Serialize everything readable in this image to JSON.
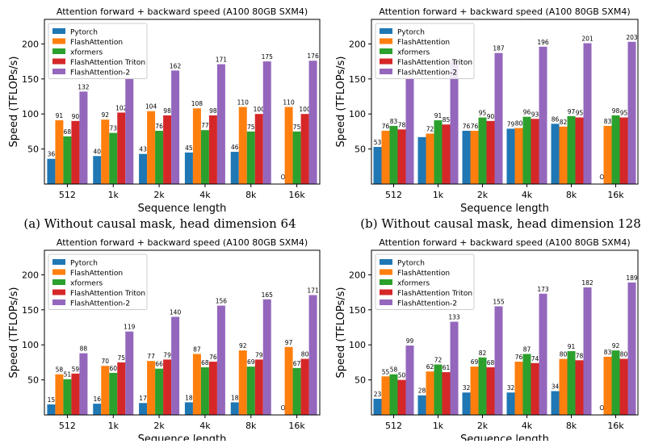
{
  "captions": [
    "(a) Without causal mask, head dimension 64",
    "(b) Without causal mask, head dimension 128"
  ],
  "colors": {
    "Pytorch": "#1f77b4",
    "FlashAttention": "#ff7f0e",
    "xformers": "#2ca02c",
    "FlashAttention Triton": "#d62728",
    "FlashAttention-2": "#9467bd"
  },
  "chart_data": [
    {
      "type": "bar",
      "title": "Attention forward + backward speed (A100 80GB SXM4)",
      "xlabel": "Sequence length",
      "ylabel": "Speed (TFLOPs/s)",
      "ylim": [
        0,
        235
      ],
      "yticks": [
        50,
        100,
        150,
        200
      ],
      "legend": "top-left",
      "oom_label": "OOM",
      "categories": [
        "512",
        "1k",
        "2k",
        "4k",
        "8k",
        "16k"
      ],
      "series": [
        {
          "name": "Pytorch",
          "values": [
            36,
            40,
            43,
            45,
            46,
            null
          ]
        },
        {
          "name": "FlashAttention",
          "values": [
            91,
            92,
            104,
            108,
            110,
            110
          ]
        },
        {
          "name": "xformers",
          "values": [
            68,
            73,
            76,
            77,
            75,
            75
          ]
        },
        {
          "name": "FlashAttention Triton",
          "values": [
            90,
            102,
            98,
            98,
            100,
            100
          ]
        },
        {
          "name": "FlashAttention-2",
          "values": [
            132,
            151,
            162,
            171,
            175,
            176
          ]
        }
      ],
      "labels": [
        [
          "36",
          "40",
          "43",
          "45",
          "46",
          "OOM"
        ],
        [
          "91",
          "92",
          "104",
          "108",
          "110",
          "110"
        ],
        [
          "68",
          "73",
          "76",
          "77",
          "75",
          "75"
        ],
        [
          "90",
          "102",
          "98",
          "98",
          "100",
          "100"
        ],
        [
          "132",
          "",
          "162",
          "171",
          "175",
          "176"
        ]
      ]
    },
    {
      "type": "bar",
      "title": "Attention forward + backward speed (A100 80GB SXM4)",
      "xlabel": "Sequence length",
      "ylabel": "Speed (TFLOPs/s)",
      "ylim": [
        0,
        235
      ],
      "yticks": [
        50,
        100,
        150,
        200
      ],
      "legend": "top-left",
      "oom_label": "OOM",
      "categories": [
        "512",
        "1k",
        "2k",
        "4k",
        "8k",
        "16k"
      ],
      "series": [
        {
          "name": "Pytorch",
          "values": [
            53,
            67,
            76,
            79,
            86,
            null
          ]
        },
        {
          "name": "FlashAttention",
          "values": [
            76,
            72,
            76,
            80,
            82,
            83
          ]
        },
        {
          "name": "xformers",
          "values": [
            83,
            91,
            95,
            96,
            97,
            98
          ]
        },
        {
          "name": "FlashAttention Triton",
          "values": [
            78,
            85,
            90,
            93,
            95,
            95
          ]
        },
        {
          "name": "FlashAttention-2",
          "values": [
            151,
            176,
            187,
            196,
            201,
            203
          ]
        }
      ],
      "labels": [
        [
          "53",
          "",
          "76",
          "79",
          "86",
          "OOM"
        ],
        [
          "76",
          "72",
          "76",
          "80",
          "82",
          "83"
        ],
        [
          "83",
          "91",
          "95",
          "96",
          "97",
          "98"
        ],
        [
          "78",
          "85",
          "90",
          "93",
          "95",
          "95"
        ],
        [
          "",
          "",
          "187",
          "196",
          "201",
          "203"
        ]
      ]
    },
    {
      "type": "bar",
      "title": "Attention forward + backward speed (A100 80GB SXM4)",
      "xlabel": "Sequence length",
      "ylabel": "Speed (TFLOPs/s)",
      "ylim": [
        0,
        235
      ],
      "yticks": [
        50,
        100,
        150,
        200
      ],
      "legend": "top-left",
      "oom_label": "OOM",
      "categories": [
        "512",
        "1k",
        "2k",
        "4k",
        "8k",
        "16k"
      ],
      "series": [
        {
          "name": "Pytorch",
          "values": [
            15,
            16,
            17,
            18,
            18,
            null
          ]
        },
        {
          "name": "FlashAttention",
          "values": [
            58,
            70,
            77,
            87,
            92,
            97
          ]
        },
        {
          "name": "xformers",
          "values": [
            51,
            60,
            66,
            68,
            69,
            67
          ]
        },
        {
          "name": "FlashAttention Triton",
          "values": [
            59,
            75,
            79,
            76,
            79,
            80
          ]
        },
        {
          "name": "FlashAttention-2",
          "values": [
            88,
            119,
            140,
            156,
            165,
            171
          ]
        }
      ],
      "labels": [
        [
          "15",
          "16",
          "17",
          "18",
          "18",
          "OOM"
        ],
        [
          "58",
          "70",
          "77",
          "87",
          "92",
          "97"
        ],
        [
          "51",
          "60",
          "66",
          "68",
          "69",
          "67"
        ],
        [
          "59",
          "75",
          "79",
          "76",
          "79",
          "80"
        ],
        [
          "88",
          "119",
          "140",
          "156",
          "165",
          "171"
        ]
      ]
    },
    {
      "type": "bar",
      "title": "Attention forward + backward speed (A100 80GB SXM4)",
      "xlabel": "Sequence length",
      "ylabel": "Speed (TFLOPs/s)",
      "ylim": [
        0,
        235
      ],
      "yticks": [
        50,
        100,
        150,
        200
      ],
      "legend": "top-left",
      "oom_label": "OOM",
      "categories": [
        "512",
        "1k",
        "2k",
        "4k",
        "8k",
        "16k"
      ],
      "series": [
        {
          "name": "Pytorch",
          "values": [
            23,
            28,
            32,
            32,
            34,
            null
          ]
        },
        {
          "name": "FlashAttention",
          "values": [
            55,
            62,
            69,
            76,
            80,
            83
          ]
        },
        {
          "name": "xformers",
          "values": [
            58,
            72,
            82,
            87,
            91,
            92
          ]
        },
        {
          "name": "FlashAttention Triton",
          "values": [
            50,
            61,
            68,
            74,
            78,
            80
          ]
        },
        {
          "name": "FlashAttention-2",
          "values": [
            99,
            133,
            155,
            173,
            182,
            189
          ]
        }
      ],
      "labels": [
        [
          "23",
          "28",
          "32",
          "32",
          "34",
          "OOM"
        ],
        [
          "55",
          "62",
          "69",
          "76",
          "80",
          "83"
        ],
        [
          "58",
          "72",
          "82",
          "87",
          "91",
          "92"
        ],
        [
          "50",
          "61",
          "68",
          "74",
          "78",
          "80"
        ],
        [
          "99",
          "133",
          "155",
          "173",
          "182",
          "189"
        ]
      ]
    }
  ]
}
